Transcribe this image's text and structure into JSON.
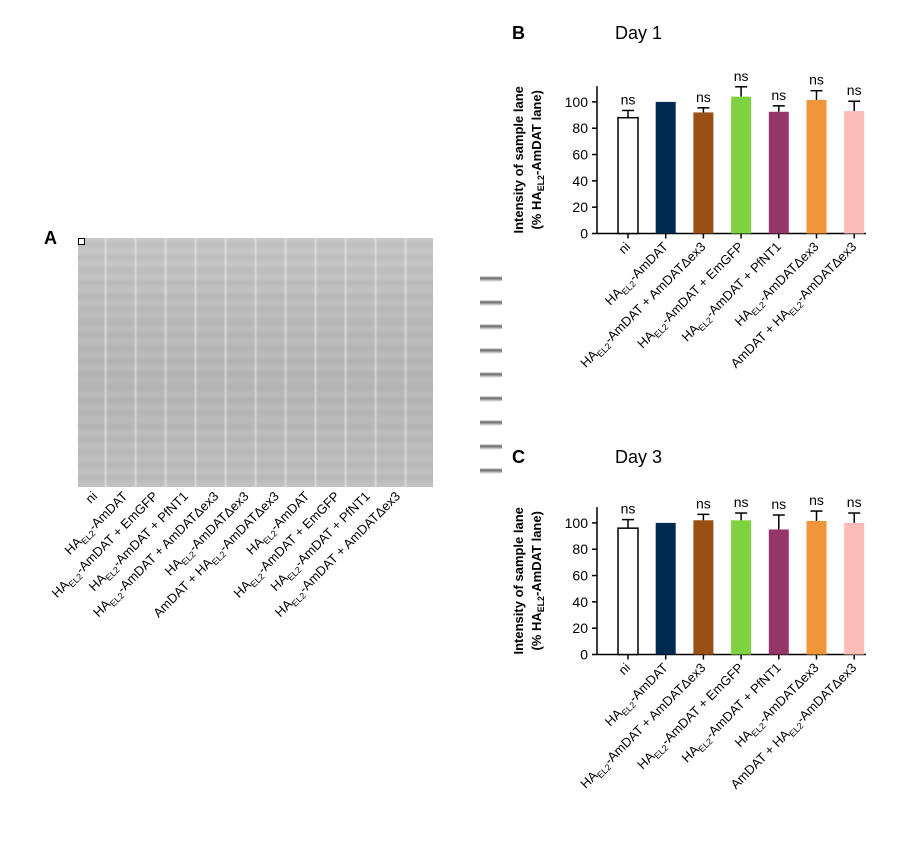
{
  "panel_a": {
    "letter": "A",
    "lane_labels": [
      {
        "pre": "ni",
        "sub": "",
        "post": ""
      },
      {
        "pre": "HA",
        "sub": "EL2",
        "post": "-AmDAT"
      },
      {
        "pre": "HA",
        "sub": "EL2",
        "post": "-AmDAT + EmGFP"
      },
      {
        "pre": "HA",
        "sub": "EL2",
        "post": "-AmDAT + PfNT1"
      },
      {
        "pre": "HA",
        "sub": "EL2",
        "post": "-AmDAT + AmDATΔex3"
      },
      {
        "pre": "HA",
        "sub": "EL2",
        "post": "-AmDATΔex3"
      },
      {
        "pre": "AmDAT + HA",
        "sub": "EL2",
        "post": "-AmDATΔex3"
      },
      {
        "pre": "HA",
        "sub": "EL2",
        "post": "-AmDAT"
      },
      {
        "pre": "HA",
        "sub": "EL2",
        "post": "-AmDAT + EmGFP"
      },
      {
        "pre": "HA",
        "sub": "EL2",
        "post": "-AmDAT + PfNT1"
      },
      {
        "pre": "HA",
        "sub": "EL2",
        "post": "-AmDAT + AmDATΔex3"
      }
    ]
  },
  "chart_data": [
    {
      "type": "bar",
      "letter": "B",
      "title": "Day 1",
      "ylabel_line1": "Intensity of sample lane",
      "ylabel_line2": {
        "pre": "(% HA",
        "sub": "EL2",
        "post": "-AmDAT lane)"
      },
      "ylim": [
        0,
        112
      ],
      "yticks": [
        "0",
        "20",
        "40",
        "60",
        "80",
        "100"
      ],
      "categories": [
        {
          "pre": "ni",
          "sub": "",
          "post": ""
        },
        {
          "pre": "HA",
          "sub": "EL2",
          "post": "-AmDAT"
        },
        {
          "pre": "HA",
          "sub": "EL2",
          "post": "-AmDAT + AmDATΔex3"
        },
        {
          "pre": "HA",
          "sub": "EL2",
          "post": "-AmDAT + EmGFP"
        },
        {
          "pre": "HA",
          "sub": "EL2",
          "post": "-AmDAT + PfNT1"
        },
        {
          "pre": "HA",
          "sub": "EL2",
          "post": "-AmDATΔex3"
        },
        {
          "pre": "AmDAT + HA",
          "sub": "EL2",
          "post": "-AmDATΔex3"
        }
      ],
      "values": [
        88,
        100,
        92,
        104,
        92.5,
        101.5,
        93
      ],
      "errors": [
        5.5,
        0,
        3.5,
        7.5,
        4.5,
        7,
        7.5
      ],
      "significance": [
        "ns",
        "",
        "ns",
        "ns",
        "ns",
        "ns",
        "ns"
      ],
      "colors": [
        "#ffffff",
        "#002a4f",
        "#9a4f14",
        "#7fd23f",
        "#96356a",
        "#f0953a",
        "#fbbcb8"
      ]
    },
    {
      "type": "bar",
      "letter": "C",
      "title": "Day 3",
      "ylabel_line1": "Intensity of sample lane",
      "ylabel_line2": {
        "pre": "(% HA",
        "sub": "EL2",
        "post": "-AmDAT lane)"
      },
      "ylim": [
        0,
        112
      ],
      "yticks": [
        "0",
        "20",
        "40",
        "60",
        "80",
        "100"
      ],
      "categories": [
        {
          "pre": "ni",
          "sub": "",
          "post": ""
        },
        {
          "pre": "HA",
          "sub": "EL2",
          "post": "-AmDAT"
        },
        {
          "pre": "HA",
          "sub": "EL2",
          "post": "-AmDAT + AmDATΔex3"
        },
        {
          "pre": "HA",
          "sub": "EL2",
          "post": "-AmDAT + EmGFP"
        },
        {
          "pre": "HA",
          "sub": "EL2",
          "post": "-AmDAT + PfNT1"
        },
        {
          "pre": "HA",
          "sub": "EL2",
          "post": "-AmDATΔex3"
        },
        {
          "pre": "AmDAT + HA",
          "sub": "EL2",
          "post": "-AmDATΔex3"
        }
      ],
      "values": [
        96,
        100,
        102,
        102,
        95,
        101.5,
        100
      ],
      "errors": [
        6.5,
        0,
        4.5,
        5.5,
        11,
        7.5,
        7.5
      ],
      "significance": [
        "ns",
        "",
        "ns",
        "ns",
        "ns",
        "ns",
        "ns"
      ],
      "colors": [
        "#ffffff",
        "#002a4f",
        "#9a4f14",
        "#7fd23f",
        "#96356a",
        "#f0953a",
        "#fbbcb8"
      ]
    }
  ]
}
